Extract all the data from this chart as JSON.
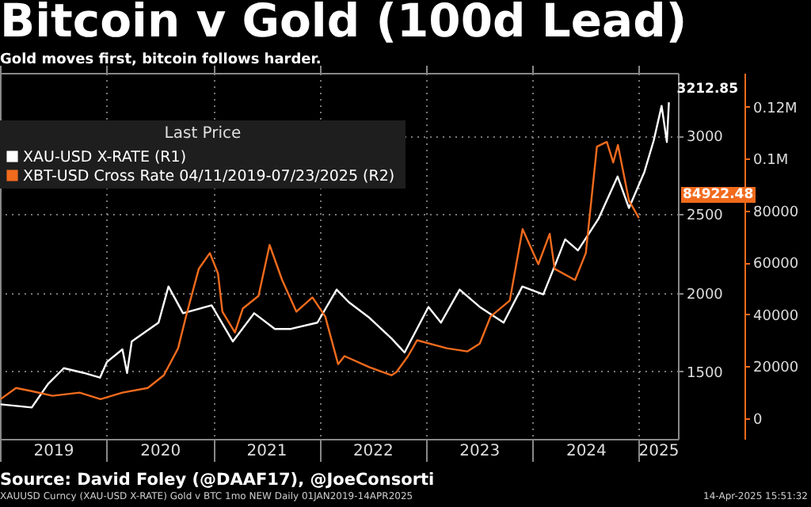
{
  "chart_data": {
    "type": "line",
    "title": "Bitcoin v Gold (100d Lead)",
    "subtitle": "Gold moves first, bitcoin follows harder.",
    "legend_title": "Last Price",
    "legend": "top left",
    "grid": true,
    "line_style": "solid",
    "xlim": [
      "2019-01-01",
      "2025-05-15"
    ],
    "xticks": [
      {
        "value": "2019-01-01",
        "label": null
      },
      {
        "value": "2019-07-02",
        "label": "2019"
      },
      {
        "value": "2020-01-01",
        "label": null
      },
      {
        "value": "2020-07-02",
        "label": "2020"
      },
      {
        "value": "2021-01-01",
        "label": null
      },
      {
        "value": "2021-07-02",
        "label": "2021"
      },
      {
        "value": "2022-01-01",
        "label": null
      },
      {
        "value": "2022-07-02",
        "label": "2022"
      },
      {
        "value": "2023-01-01",
        "label": null
      },
      {
        "value": "2023-07-02",
        "label": "2023"
      },
      {
        "value": "2024-01-01",
        "label": null
      },
      {
        "value": "2024-07-02",
        "label": "2024"
      },
      {
        "value": "2025-01-01",
        "label": null
      },
      {
        "value": "2025-03-08",
        "label": "2025"
      }
    ],
    "ylim": [
      1070,
      3400
    ],
    "yticks": [
      1500,
      2000,
      2500,
      3000
    ],
    "y2lim": [
      -8000,
      133000
    ],
    "y2ticks": [
      0,
      20000,
      40000,
      60000,
      80000,
      {
        "value": 100000,
        "label": "0.1M"
      },
      {
        "value": 120000,
        "label": "0.12M"
      }
    ],
    "series": [
      {
        "name": "XAU-USD X-RATE  (R1)",
        "color": "#ffffff",
        "x": [
          "2019-01-03",
          "2019-04-20",
          "2019-06-15",
          "2019-08-08",
          "2019-10-15",
          "2019-12-10",
          "2020-01-03",
          "2020-02-25",
          "2020-03-12",
          "2020-03-28",
          "2020-06-28",
          "2020-08-01",
          "2020-09-20",
          "2020-12-27",
          "2021-03-10",
          "2021-05-22",
          "2021-08-01",
          "2021-09-25",
          "2021-12-25",
          "2022-03-01",
          "2022-04-12",
          "2022-06-22",
          "2022-09-05",
          "2022-10-20",
          "2023-01-10",
          "2023-02-22",
          "2023-04-27",
          "2023-07-05",
          "2023-09-25",
          "2023-11-28",
          "2024-02-08",
          "2024-03-18",
          "2024-04-23",
          "2024-06-06",
          "2024-08-15",
          "2024-10-20",
          "2024-11-28",
          "2025-01-20",
          "2025-02-21",
          "2025-03-20",
          "2025-04-07",
          "2025-04-14"
        ],
        "values": [
          1290,
          1270,
          1420,
          1520,
          1490,
          1460,
          1560,
          1640,
          1490,
          1690,
          1810,
          2040,
          1870,
          1920,
          1690,
          1870,
          1770,
          1770,
          1810,
          2020,
          1940,
          1840,
          1710,
          1620,
          1910,
          1810,
          2020,
          1910,
          1810,
          2040,
          1990,
          2170,
          2340,
          2270,
          2470,
          2740,
          2540,
          2770,
          2970,
          3190,
          2960,
          3212.85
        ]
      },
      {
        "name": "XBT-USD Cross Rate 04/11/2019-07/23/2025  (R2)",
        "color": "#f26b1d",
        "axis": "y2",
        "x": [
          "2019-01-03",
          "2019-02-25",
          "2019-04-20",
          "2019-06-30",
          "2019-10-01",
          "2019-12-12",
          "2020-02-25",
          "2020-05-22",
          "2020-07-16",
          "2020-09-03",
          "2020-09-30",
          "2020-11-13",
          "2020-12-21",
          "2021-01-18",
          "2021-02-02",
          "2021-03-17",
          "2021-04-13",
          "2021-06-06",
          "2021-07-14",
          "2021-08-26",
          "2021-10-14",
          "2021-12-08",
          "2022-01-21",
          "2022-03-06",
          "2022-03-28",
          "2022-06-22",
          "2022-09-05",
          "2022-09-22",
          "2022-11-01",
          "2022-12-02",
          "2023-03-14",
          "2023-05-24",
          "2023-07-05",
          "2023-08-11",
          "2023-10-16",
          "2023-11-29",
          "2024-01-22",
          "2024-03-01",
          "2024-03-18",
          "2024-05-27",
          "2024-07-03",
          "2024-08-10",
          "2024-09-13",
          "2024-10-05",
          "2024-10-21",
          "2024-11-28",
          "2025-01-01"
        ],
        "values": [
          7300,
          11600,
          10400,
          8600,
          9800,
          7300,
          9800,
          11600,
          16500,
          26900,
          39100,
          57500,
          63600,
          55700,
          41000,
          33000,
          42200,
          47100,
          66700,
          53200,
          41000,
          46500,
          39100,
          20800,
          23900,
          19600,
          16500,
          17700,
          23900,
          30000,
          26900,
          25700,
          28700,
          39100,
          45300,
          72800,
          59300,
          71000,
          57500,
          53200,
          63600,
          104600,
          106400,
          98500,
          105200,
          83800,
          77100
        ]
      }
    ],
    "annotations": [
      {
        "text": "3212.85",
        "x": "2025-04-14",
        "y": 3212.85
      },
      "84922.48",
      "Source: David Foley (@DAAF17), @JoeConsorti",
      "XAUUSD Curncy (XAU-USD X-RATE) Gold v BTC 1mo NEW  Daily 01JAN2019-14APR2025",
      "14-Apr-2025 15:51:32"
    ]
  }
}
